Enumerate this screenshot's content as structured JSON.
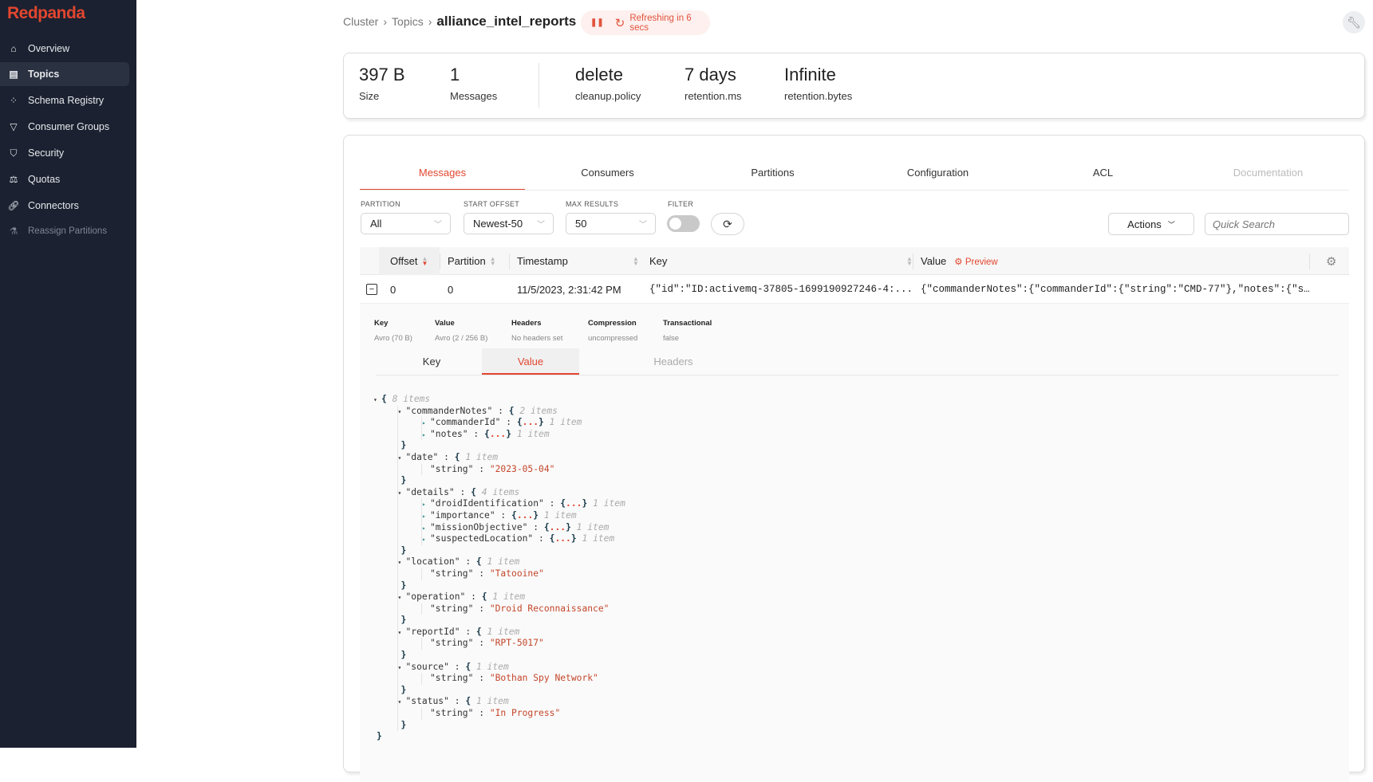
{
  "brand": {
    "logo": "Redpanda",
    "accent": "#e2462f"
  },
  "sidebar": {
    "items": [
      {
        "label": "Overview",
        "icon": "home-icon"
      },
      {
        "label": "Topics",
        "icon": "topics-icon",
        "active": true
      },
      {
        "label": "Schema Registry",
        "icon": "schema-icon"
      },
      {
        "label": "Consumer Groups",
        "icon": "funnel-icon"
      },
      {
        "label": "Security",
        "icon": "shield-icon"
      },
      {
        "label": "Quotas",
        "icon": "scale-icon"
      },
      {
        "label": "Connectors",
        "icon": "link-icon"
      },
      {
        "label": "Reassign Partitions",
        "icon": "flask-icon",
        "disabled": true
      }
    ]
  },
  "breadcrumb": {
    "items": [
      "Cluster",
      "Topics"
    ],
    "current": "alliance_intel_reports"
  },
  "refresh": {
    "text": "Refreshing in 6 secs"
  },
  "stats": [
    {
      "value": "397 B",
      "label": "Size"
    },
    {
      "value": "1",
      "label": "Messages"
    },
    {
      "value": "delete",
      "label": "cleanup.policy"
    },
    {
      "value": "7 days",
      "label": "retention.ms"
    },
    {
      "value": "Infinite",
      "label": "retention.bytes"
    }
  ],
  "tabs": [
    {
      "label": "Messages",
      "active": true
    },
    {
      "label": "Consumers"
    },
    {
      "label": "Partitions"
    },
    {
      "label": "Configuration"
    },
    {
      "label": "ACL"
    },
    {
      "label": "Documentation",
      "disabled": true
    }
  ],
  "filters": {
    "partition": {
      "label": "PARTITION",
      "value": "All"
    },
    "start_offset": {
      "label": "START OFFSET",
      "value": "Newest-50"
    },
    "max_results": {
      "label": "MAX RESULTS",
      "value": "50"
    },
    "filter": {
      "label": "FILTER",
      "enabled": false
    },
    "actions_label": "Actions",
    "search_placeholder": "Quick Search"
  },
  "table": {
    "columns": [
      "Offset",
      "Partition",
      "Timestamp",
      "Key",
      "Value"
    ],
    "preview_label": "Preview",
    "rows": [
      {
        "offset": "0",
        "partition": "0",
        "timestamp": "11/5/2023, 2:31:42 PM",
        "key": "{\"id\":\"ID:activemq-37805-1699190927246-4:...",
        "value": "{\"commanderNotes\":{\"commanderId\":{\"string\":\"CMD-77\"},\"notes\":{\"s…"
      }
    ]
  },
  "detail": {
    "meta": [
      {
        "label": "Key",
        "value": "Avro (70 B)"
      },
      {
        "label": "Value",
        "value": "Avro (2 / 256 B)"
      },
      {
        "label": "Headers",
        "value": "No headers set"
      },
      {
        "label": "Compression",
        "value": "uncompressed"
      },
      {
        "label": "Transactional",
        "value": "false"
      }
    ],
    "tabs": [
      {
        "label": "Key"
      },
      {
        "label": "Value",
        "active": true
      },
      {
        "label": "Headers",
        "disabled": true
      }
    ],
    "json": {
      "count": "8 items",
      "children": [
        {
          "key": "commanderNotes",
          "count": "2 items",
          "children": [
            {
              "key": "commanderId",
              "count": "1 item",
              "collapsed": true
            },
            {
              "key": "notes",
              "count": "1 item",
              "collapsed": true
            }
          ]
        },
        {
          "key": "date",
          "count": "1 item",
          "children": [
            {
              "key": "string",
              "value": "2023-05-04"
            }
          ]
        },
        {
          "key": "details",
          "count": "4 items",
          "children": [
            {
              "key": "droidIdentification",
              "count": "1 item",
              "collapsed": true
            },
            {
              "key": "importance",
              "count": "1 item",
              "collapsed": true
            },
            {
              "key": "missionObjective",
              "count": "1 item",
              "collapsed": true
            },
            {
              "key": "suspectedLocation",
              "count": "1 item",
              "collapsed": true
            }
          ]
        },
        {
          "key": "location",
          "count": "1 item",
          "children": [
            {
              "key": "string",
              "value": "Tatooine"
            }
          ]
        },
        {
          "key": "operation",
          "count": "1 item",
          "children": [
            {
              "key": "string",
              "value": "Droid Reconnaissance"
            }
          ]
        },
        {
          "key": "reportId",
          "count": "1 item",
          "children": [
            {
              "key": "string",
              "value": "RPT-5017"
            }
          ]
        },
        {
          "key": "source",
          "count": "1 item",
          "children": [
            {
              "key": "string",
              "value": "Bothan Spy Network"
            }
          ]
        },
        {
          "key": "status",
          "count": "1 item",
          "children": [
            {
              "key": "string",
              "value": "In Progress"
            }
          ]
        }
      ]
    }
  }
}
